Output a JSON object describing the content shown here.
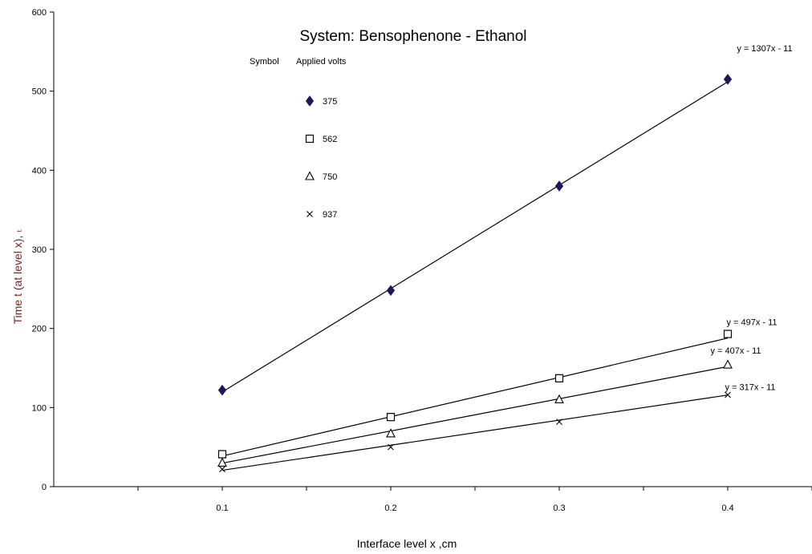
{
  "chart_data": {
    "type": "scatter",
    "title": "System: Bensophenone - Ethanol",
    "xlabel": "Interface level x ,cm",
    "ylabel": "Time t (at level x), ₜ",
    "xlim": [
      0,
      0.45
    ],
    "ylim": [
      0,
      600
    ],
    "x_ticks": [
      "0.1",
      "0.2",
      "0.3",
      "0.4"
    ],
    "y_ticks": [
      "0",
      "100",
      "200",
      "300",
      "400",
      "500",
      "600"
    ],
    "legend": {
      "position": "top-center",
      "header_symbol": "Symbol",
      "header_volts": "Applied volts"
    },
    "series": [
      {
        "name": "375",
        "marker": "diamond",
        "x": [
          0.1,
          0.2,
          0.3,
          0.4
        ],
        "y": [
          122,
          248,
          380,
          515
        ],
        "trendline": {
          "label": "y = 1307x - 11",
          "slope": 1307,
          "intercept": -11
        }
      },
      {
        "name": "562",
        "marker": "square",
        "x": [
          0.1,
          0.2,
          0.3,
          0.4
        ],
        "y": [
          41,
          88,
          137,
          193
        ],
        "trendline": {
          "label": "y = 497x - 11",
          "slope": 497,
          "intercept": -11
        }
      },
      {
        "name": "750",
        "marker": "triangle",
        "x": [
          0.1,
          0.2,
          0.3,
          0.4
        ],
        "y": [
          30,
          67,
          110,
          154
        ],
        "trendline": {
          "label": "y = 407x - 11",
          "slope": 407,
          "intercept": -11
        }
      },
      {
        "name": "937",
        "marker": "x",
        "x": [
          0.1,
          0.2,
          0.3,
          0.4
        ],
        "y": [
          22,
          50,
          82,
          116
        ],
        "trendline": {
          "label": "y = 317x - 11",
          "slope": 317,
          "intercept": -11
        }
      }
    ],
    "grid": false
  }
}
